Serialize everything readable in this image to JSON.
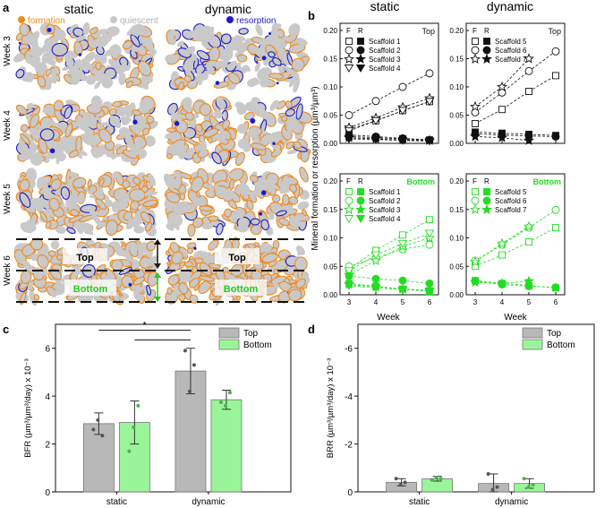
{
  "panel_labels": {
    "a": "a",
    "b": "b",
    "c": "c",
    "d": "d"
  },
  "panel_a": {
    "col_static": "static",
    "col_dynamic": "dynamic",
    "legend": [
      {
        "label": "formation",
        "color": "#f08a1c"
      },
      {
        "label": "quiescent",
        "color": "#c8c8c8"
      },
      {
        "label": "resorption",
        "color": "#1c1ccc"
      }
    ],
    "rows": [
      "Week 3",
      "Week 4",
      "Week 5",
      "Week 6"
    ],
    "week6_top": "Top",
    "week6_bottom": "Bottom",
    "colors": {
      "bone": "#c9c9c9",
      "formation": "#f08a1c",
      "resorption": "#1c1ccc",
      "bottom_green": "#22cc22"
    }
  },
  "panel_b": {
    "col_static": "static",
    "col_dynamic": "dynamic",
    "ylabel": "Mineral formation or resorption (µm³/µm³)",
    "xlabel": "Week",
    "x_ticks": [
      "3",
      "4",
      "5",
      "6"
    ],
    "y_ticks": [
      "0.00",
      "0.05",
      "0.10",
      "0.15",
      "0.20"
    ],
    "legend_header_f": "F",
    "legend_header_r": "R",
    "top_label": "Top",
    "bottom_label": "Bottom",
    "colors": {
      "top": "#111111",
      "bottom": "#22dd22"
    }
  },
  "chart_data": [
    {
      "type": "line",
      "id": "b_static_top",
      "title": "Top",
      "xlabel": "Week",
      "ylabel": "Mineral formation or resorption (µm³/µm³)",
      "ylim": [
        0,
        0.2
      ],
      "x": [
        3,
        4,
        5,
        6
      ],
      "series": [
        {
          "name": "Scaffold 1",
          "kind": "formation",
          "marker": "square",
          "values": [
            0.025,
            0.04,
            0.058,
            0.074
          ]
        },
        {
          "name": "Scaffold 2",
          "kind": "formation",
          "marker": "circle",
          "values": [
            0.05,
            0.075,
            0.1,
            0.124
          ]
        },
        {
          "name": "Scaffold 3",
          "kind": "formation",
          "marker": "star",
          "values": [
            0.028,
            0.045,
            0.064,
            0.08
          ]
        },
        {
          "name": "Scaffold 4",
          "kind": "formation",
          "marker": "triangle",
          "values": [
            0.022,
            0.04,
            0.058,
            0.074
          ]
        },
        {
          "name": "Scaffold 1",
          "kind": "resorption",
          "marker": "square",
          "values": [
            0.012,
            0.01,
            0.008,
            0.006
          ]
        },
        {
          "name": "Scaffold 2",
          "kind": "resorption",
          "marker": "circle",
          "values": [
            0.015,
            0.012,
            0.009,
            0.006
          ]
        },
        {
          "name": "Scaffold 3",
          "kind": "resorption",
          "marker": "star",
          "values": [
            0.01,
            0.008,
            0.006,
            0.005
          ]
        },
        {
          "name": "Scaffold 4",
          "kind": "resorption",
          "marker": "triangle",
          "values": [
            0.008,
            0.007,
            0.005,
            0.004
          ]
        }
      ]
    },
    {
      "type": "line",
      "id": "b_dynamic_top",
      "title": "Top",
      "xlabel": "Week",
      "ylim": [
        0,
        0.2
      ],
      "x": [
        3,
        4,
        5,
        6
      ],
      "series": [
        {
          "name": "Scaffold 5",
          "kind": "formation",
          "marker": "square",
          "values": [
            0.035,
            0.06,
            0.092,
            0.12
          ]
        },
        {
          "name": "Scaffold 6",
          "kind": "formation",
          "marker": "circle",
          "values": [
            0.055,
            0.09,
            0.128,
            0.163
          ]
        },
        {
          "name": "Scaffold 7",
          "kind": "formation",
          "marker": "star",
          "values": [
            0.065,
            0.1,
            0.15,
            null
          ]
        },
        {
          "name": "Scaffold 5",
          "kind": "resorption",
          "marker": "square",
          "values": [
            0.02,
            0.018,
            0.016,
            0.014
          ]
        },
        {
          "name": "Scaffold 6",
          "kind": "resorption",
          "marker": "circle",
          "values": [
            0.017,
            0.015,
            0.013,
            0.012
          ]
        },
        {
          "name": "Scaffold 7",
          "kind": "resorption",
          "marker": "star",
          "values": [
            0.012,
            0.01,
            0.005,
            null
          ]
        }
      ]
    },
    {
      "type": "line",
      "id": "b_static_bottom",
      "title": "Bottom",
      "xlabel": "Week",
      "ylim": [
        0,
        0.2
      ],
      "x": [
        3,
        4,
        5,
        6
      ],
      "series": [
        {
          "name": "Scaffold 1",
          "kind": "formation",
          "marker": "square",
          "values": [
            0.045,
            0.078,
            0.105,
            0.132
          ]
        },
        {
          "name": "Scaffold 2",
          "kind": "formation",
          "marker": "circle",
          "values": [
            0.05,
            0.065,
            0.08,
            0.088
          ]
        },
        {
          "name": "Scaffold 3",
          "kind": "formation",
          "marker": "star",
          "values": [
            0.035,
            0.06,
            0.085,
            0.1
          ]
        },
        {
          "name": "Scaffold 4",
          "kind": "formation",
          "marker": "triangle",
          "values": [
            0.042,
            0.07,
            0.09,
            0.108
          ]
        },
        {
          "name": "Scaffold 1",
          "kind": "resorption",
          "marker": "square",
          "values": [
            0.02,
            0.015,
            0.01,
            0.006
          ]
        },
        {
          "name": "Scaffold 2",
          "kind": "resorption",
          "marker": "circle",
          "values": [
            0.033,
            0.028,
            0.025,
            0.02
          ]
        },
        {
          "name": "Scaffold 3",
          "kind": "resorption",
          "marker": "star",
          "values": [
            0.018,
            0.014,
            0.01,
            0.008
          ]
        },
        {
          "name": "Scaffold 4",
          "kind": "resorption",
          "marker": "triangle",
          "values": [
            0.016,
            0.012,
            0.009,
            0.007
          ]
        }
      ]
    },
    {
      "type": "line",
      "id": "b_dynamic_bottom",
      "title": "Bottom",
      "xlabel": "Week",
      "ylim": [
        0,
        0.2
      ],
      "x": [
        3,
        4,
        5,
        6
      ],
      "series": [
        {
          "name": "Scaffold 5",
          "kind": "formation",
          "marker": "square",
          "values": [
            0.05,
            0.07,
            0.093,
            0.118
          ]
        },
        {
          "name": "Scaffold 6",
          "kind": "formation",
          "marker": "circle",
          "values": [
            0.06,
            0.088,
            0.118,
            0.149
          ]
        },
        {
          "name": "Scaffold 7",
          "kind": "formation",
          "marker": "star",
          "values": [
            0.058,
            0.09,
            0.12,
            null
          ]
        },
        {
          "name": "Scaffold 5",
          "kind": "resorption",
          "marker": "square",
          "values": [
            0.025,
            0.02,
            0.016,
            0.012
          ]
        },
        {
          "name": "Scaffold 6",
          "kind": "resorption",
          "marker": "circle",
          "values": [
            0.024,
            0.018,
            0.015,
            0.013
          ]
        },
        {
          "name": "Scaffold 7",
          "kind": "resorption",
          "marker": "star",
          "values": [
            0.022,
            0.02,
            0.024,
            null
          ]
        }
      ]
    },
    {
      "type": "bar",
      "id": "c",
      "ylabel": "BFR (µm³/µm³/day) x 10⁻³",
      "categories": [
        "static",
        "dynamic"
      ],
      "ylim": [
        0,
        7
      ],
      "y_ticks": [
        0,
        2,
        4,
        6
      ],
      "series": [
        {
          "name": "Top",
          "color": "#b8b8b8",
          "values": [
            2.85,
            5.05
          ],
          "errors": [
            0.45,
            0.95
          ],
          "points": [
            [
              2.6,
              3.0,
              2.35
            ],
            [
              5.9,
              4.2,
              5.3
            ]
          ]
        },
        {
          "name": "Bottom",
          "color": "#9af59a",
          "values": [
            2.9,
            3.85
          ],
          "errors": [
            0.9,
            0.4
          ],
          "points": [
            [
              1.7,
              2.7,
              3.6
            ],
            [
              3.75,
              3.6,
              4.15
            ]
          ]
        }
      ],
      "significance": {
        "label": "*",
        "pairs": [
          [
            "static-Top",
            "dynamic-Top"
          ],
          [
            "static-Bottom",
            "dynamic-Top"
          ]
        ]
      }
    },
    {
      "type": "bar",
      "id": "d",
      "ylabel": "BRR (µm³/µm³/day) x 10⁻³",
      "categories": [
        "static",
        "dynamic"
      ],
      "ylim": [
        0,
        -7
      ],
      "y_ticks": [
        0,
        -2,
        -4,
        -6
      ],
      "series": [
        {
          "name": "Top",
          "color": "#b8b8b8",
          "values": [
            -0.4,
            -0.35
          ],
          "errors": [
            0.15,
            0.4
          ],
          "points": [
            [
              -0.55,
              -0.3,
              -0.4
            ],
            [
              -0.75,
              -0.1,
              -0.2
            ]
          ]
        },
        {
          "name": "Bottom",
          "color": "#9af59a",
          "values": [
            -0.55,
            -0.35
          ],
          "errors": [
            0.1,
            0.2
          ],
          "points": [
            [
              -0.5,
              -0.6,
              -0.55
            ],
            [
              -0.55,
              -0.2,
              -0.3
            ]
          ]
        }
      ]
    }
  ]
}
